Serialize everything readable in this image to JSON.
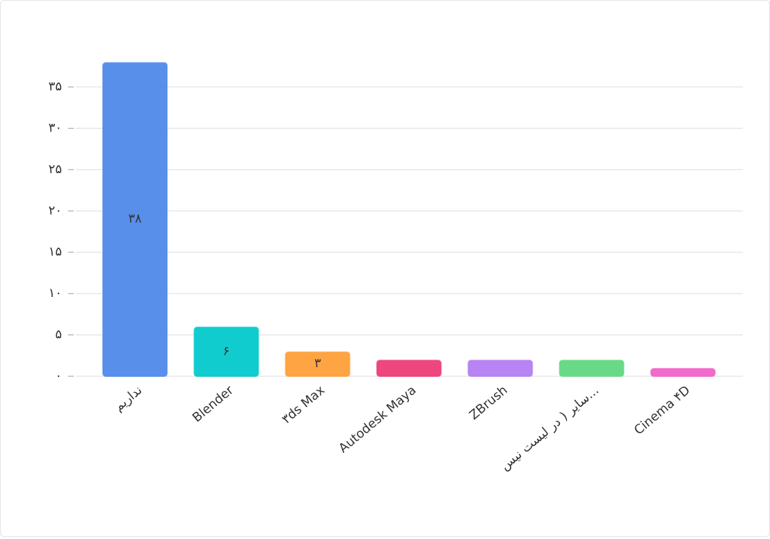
{
  "chart_data": {
    "type": "bar",
    "categories": [
      "نداریم",
      "Blender",
      "۳ds Max",
      "Autodesk Maya",
      "ZBrush",
      "سایر ( در لیست نیس...",
      "Cinema ۴D"
    ],
    "values": [
      38,
      6,
      3,
      2,
      2,
      2,
      1
    ],
    "value_labels": [
      "۳۸",
      "۶",
      "۳",
      null,
      null,
      null,
      null
    ],
    "colors": [
      "#4f89e9",
      "#04c9cb",
      "#ff9f38",
      "#ec3d77",
      "#b47cf2",
      "#62d781",
      "#ef63c8"
    ],
    "ylim": [
      0,
      38
    ],
    "yticks": [
      {
        "value": 0,
        "label": "۰"
      },
      {
        "value": 5,
        "label": "۵"
      },
      {
        "value": 10,
        "label": "۱۰"
      },
      {
        "value": 15,
        "label": "۱۵"
      },
      {
        "value": 20,
        "label": "۲۰"
      },
      {
        "value": 25,
        "label": "۲۵"
      },
      {
        "value": 30,
        "label": "۳۰"
      },
      {
        "value": 35,
        "label": "۳۵"
      }
    ],
    "grid": true
  }
}
